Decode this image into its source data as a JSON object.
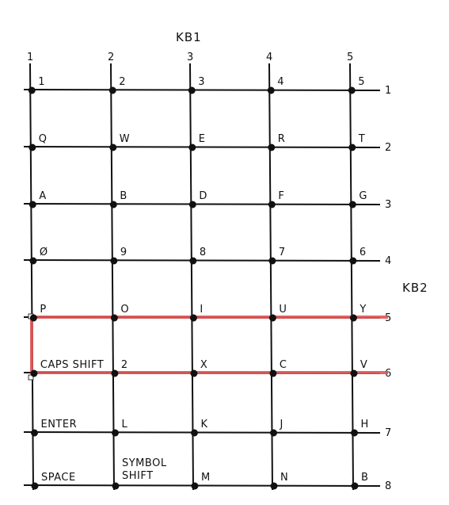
{
  "kb1_label": "KB1",
  "kb2_label": "KB2",
  "column_numbers": [
    "1",
    "2",
    "3",
    "4",
    "5"
  ],
  "row_numbers": [
    "1",
    "2",
    "3",
    "4",
    "5",
    "6",
    "7",
    "8"
  ],
  "keys": [
    [
      "1",
      "2",
      "3",
      "4",
      "5"
    ],
    [
      "Q",
      "W",
      "E",
      "R",
      "T"
    ],
    [
      "A",
      "B",
      "D",
      "F",
      "G"
    ],
    [
      "Ø",
      "9",
      "8",
      "7",
      "6"
    ],
    [
      "P",
      "O",
      "I",
      "U",
      "Y"
    ],
    [
      "CAPS SHIFT",
      "2",
      "X",
      "C",
      "V"
    ],
    [
      "ENTER",
      "L",
      "K",
      "J",
      "H"
    ],
    [
      "SPACE",
      "SYMBOL\nSHIFT",
      "M",
      "N",
      "B"
    ]
  ],
  "highlight_rows": [
    "5",
    "6"
  ],
  "highlight_color": "#e05555"
}
